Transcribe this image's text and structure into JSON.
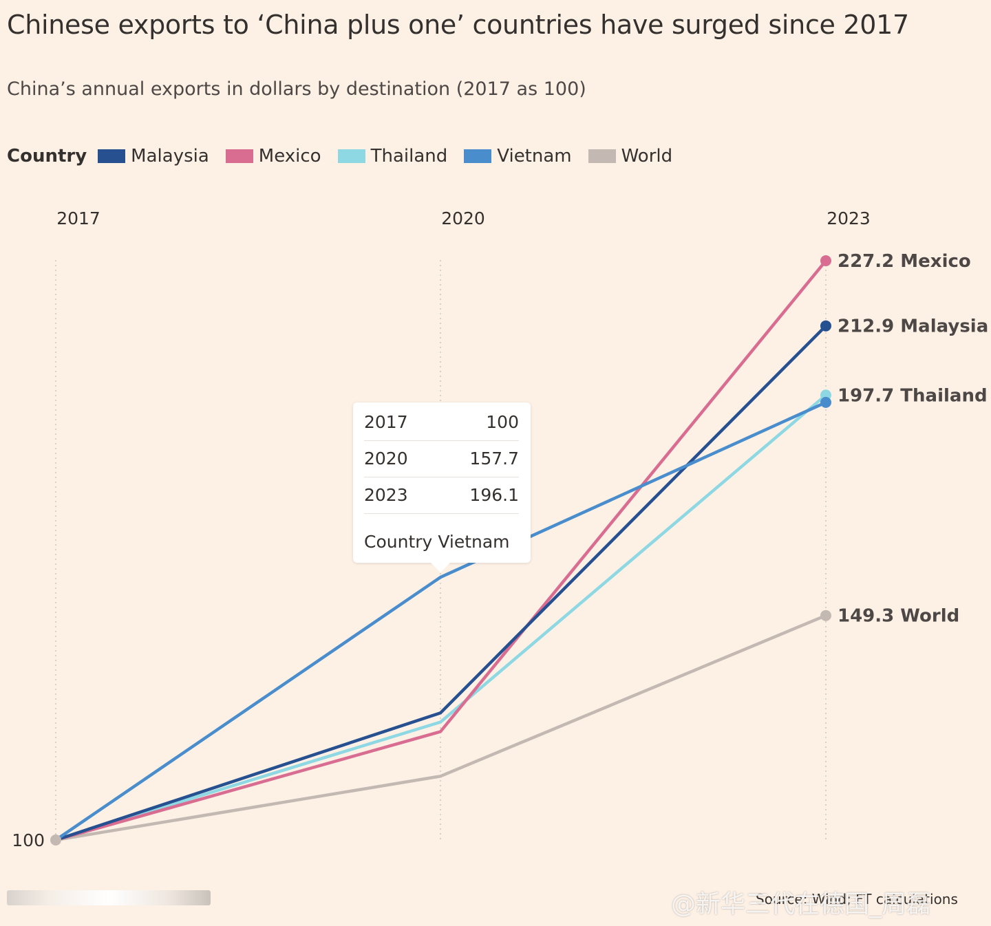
{
  "chart_data": {
    "type": "line",
    "title": "Chinese exports to ‘China plus one’ countries have surged since 2017",
    "subtitle": "China’s annual exports in dollars by destination (2017 as 100)",
    "legend_title": "Country",
    "legend_position": "top-left",
    "x": [
      "2017",
      "2020",
      "2023"
    ],
    "y_tick_label": "100",
    "ylim": [
      100,
      227.2
    ],
    "grid": "vertical dotted lines at each year",
    "series": [
      {
        "name": "Malaysia",
        "color": "#26508f",
        "values": [
          100,
          127.9,
          212.9
        ]
      },
      {
        "name": "Mexico",
        "color": "#d96d91",
        "values": [
          100,
          123.8,
          227.2
        ]
      },
      {
        "name": "Thailand",
        "color": "#8ed8e3",
        "values": [
          100,
          125.9,
          197.7
        ]
      },
      {
        "name": "Vietnam",
        "color": "#4a8dcc",
        "values": [
          100,
          157.7,
          196.1
        ]
      },
      {
        "name": "World",
        "color": "#c3b9b2",
        "values": [
          100,
          114.0,
          149.3
        ]
      }
    ],
    "end_labels": [
      {
        "series": "Mexico",
        "text": "227.2 Mexico"
      },
      {
        "series": "Malaysia",
        "text": "212.9 Malaysia"
      },
      {
        "series": "Thailand",
        "text": "197.7 Thailand"
      },
      {
        "series": "World",
        "text": "149.3 World"
      }
    ],
    "tooltip": {
      "series": "Vietnam",
      "rows": [
        {
          "year": "2017",
          "value": "100"
        },
        {
          "year": "2020",
          "value": "157.7"
        },
        {
          "year": "2023",
          "value": "196.1"
        }
      ],
      "country_label": "Country",
      "country_value": "Vietnam"
    },
    "source": "Source: Wind; FT calculations"
  },
  "watermark": "@新华三代在德国_周磊"
}
